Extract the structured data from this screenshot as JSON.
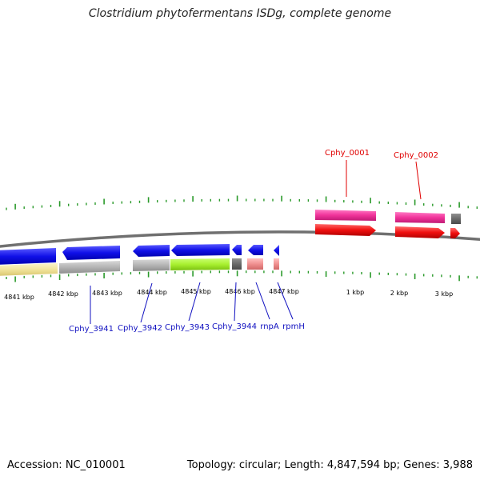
{
  "title": "Clostridium phytofermentans ISDg, complete genome",
  "footer": {
    "accession": "Accession: NC_010001",
    "summary": "Topology: circular; Length: 4,847,594 bp; Genes: 3,988"
  },
  "colors": {
    "cds": "#1010e8",
    "gene_red": "#f01010",
    "gene_pink": "#f0339a",
    "gene_gray": "#b4b4b4",
    "gene_dark_gray": "#707070",
    "gene_yellow": "#f4e8a0",
    "gene_green": "#a8f030",
    "gene_light_red": "#f09090",
    "tick": "#2a9a2a",
    "backbone": "#888888",
    "label_blue": "#1010c0",
    "label_red": "#e00000"
  },
  "ticks": {
    "labels": [
      "4841 kbp",
      "4842 kbp",
      "4843 kbp",
      "4844 kbp",
      "4845 kbp",
      "4846 kbp",
      "4847 kbp",
      "1 kbp",
      "2 kbp",
      "3 kbp"
    ]
  },
  "gene_labels_bottom": [
    "Cphy_3941",
    "Cphy_3942",
    "Cphy_3943",
    "Cphy_3944",
    "rnpA",
    "rpmH"
  ],
  "gene_labels_top": [
    "Cphy_0001",
    "Cphy_0002"
  ]
}
